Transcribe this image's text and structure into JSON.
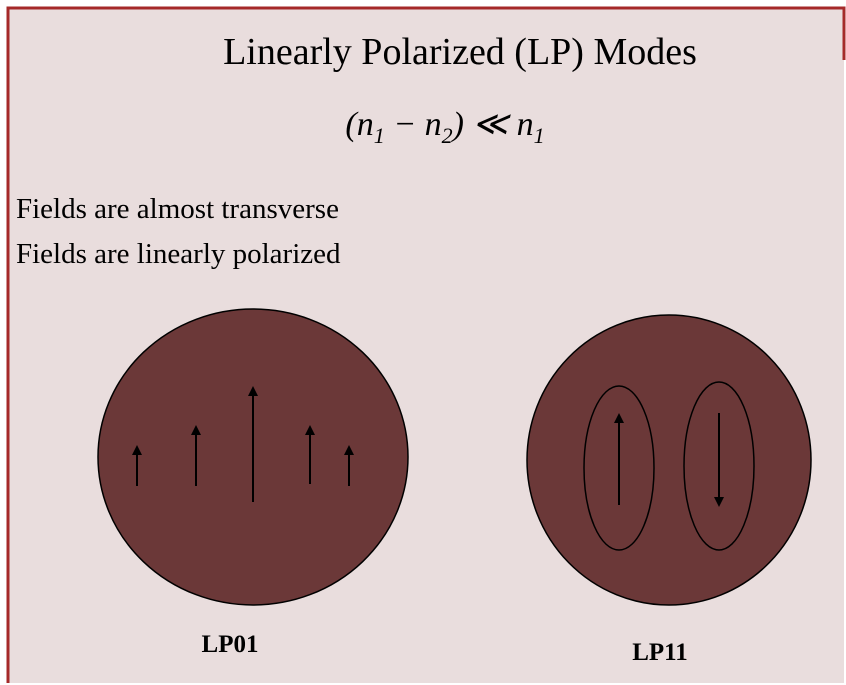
{
  "title": "Linearly Polarized (LP) Modes",
  "equation": [
    "(n",
    "1",
    " − n",
    "2",
    ") ≪ n",
    "1"
  ],
  "bullets": [
    "Fields are almost transverse",
    "Fields are linearly polarized"
  ],
  "modes": [
    {
      "label": "LP01"
    },
    {
      "label": "LP11"
    }
  ]
}
